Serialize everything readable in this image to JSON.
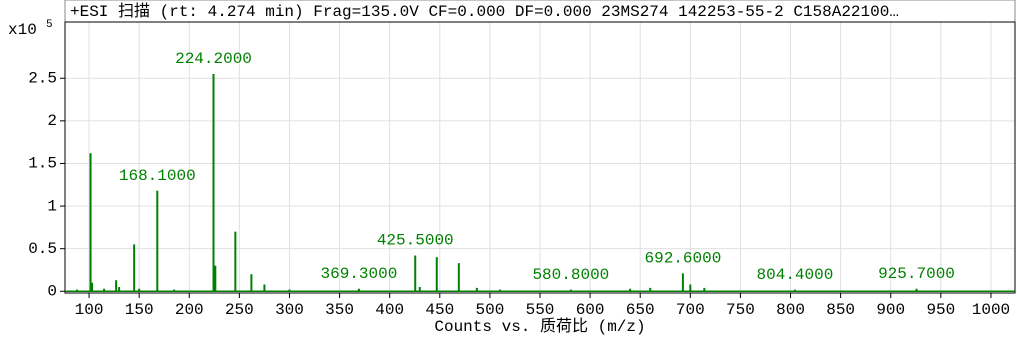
{
  "chart_data": {
    "type": "stem",
    "title": "+ESI 扫描 (rt: 4.274 min) Frag=135.0V CF=0.000 DF=0.000 23MS274 142253-55-2 C158A22100…",
    "x_label": "Counts vs. 质荷比 (m/z)",
    "y_multiplier": "x10",
    "y_exponent": "5",
    "color": "#008000",
    "grid": true,
    "x": [
      88,
      101.5,
      103,
      115,
      127,
      130,
      145,
      150,
      168.1,
      185,
      224.2,
      226,
      246,
      262,
      275,
      300,
      369.3,
      425.5,
      430,
      447,
      469,
      487,
      510,
      580.8,
      640,
      660,
      692.6,
      700,
      714,
      760,
      804.4,
      850,
      925.7
    ],
    "values": [
      0.02,
      1.62,
      0.1,
      0.03,
      0.13,
      0.05,
      0.55,
      0.03,
      1.18,
      0.02,
      2.55,
      0.3,
      0.7,
      0.2,
      0.08,
      0.02,
      0.03,
      0.42,
      0.05,
      0.4,
      0.33,
      0.04,
      0.02,
      0.02,
      0.03,
      0.04,
      0.21,
      0.08,
      0.04,
      0.01,
      0.02,
      0.01,
      0.03
    ],
    "peak_labels": [
      null,
      null,
      null,
      null,
      null,
      null,
      null,
      null,
      "168.1000",
      null,
      "224.2000",
      null,
      null,
      null,
      null,
      null,
      "369.3000",
      "425.5000",
      null,
      null,
      null,
      null,
      null,
      "580.8000",
      null,
      null,
      "692.6000",
      null,
      null,
      null,
      "804.4000",
      null,
      "925.7000"
    ],
    "xlim": [
      76,
      1024
    ],
    "xticks": [
      100,
      150,
      200,
      250,
      300,
      350,
      400,
      450,
      500,
      550,
      600,
      650,
      700,
      750,
      800,
      850,
      900,
      950,
      1000
    ],
    "ylim": [
      -0.02,
      3.16
    ],
    "yticks": [
      0,
      0.5,
      1,
      1.5,
      2,
      2.5
    ]
  }
}
